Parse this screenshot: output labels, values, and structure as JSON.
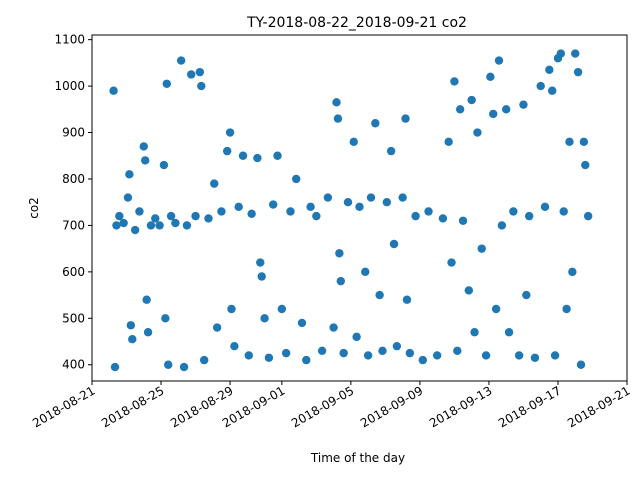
{
  "chart_data": {
    "type": "scatter",
    "title": "TY-2018-08-22_2018-09-21 co2",
    "xlabel": "Time of the day",
    "ylabel": "co2",
    "xlim": [
      "2018-08-21",
      "2018-09-21"
    ],
    "ylim": [
      365,
      1110
    ],
    "x_ticks": [
      "2018-08-21",
      "2018-08-25",
      "2018-08-29",
      "2018-09-01",
      "2018-09-05",
      "2018-09-09",
      "2018-09-13",
      "2018-09-17",
      "2018-09-21"
    ],
    "y_ticks": [
      400,
      500,
      600,
      700,
      800,
      900,
      1000,
      1100
    ],
    "grid": false,
    "marker_color": "#1f77b4",
    "series": [
      {
        "points": [
          [
            "2018-08-22 06:00",
            990
          ],
          [
            "2018-08-22 08:00",
            395
          ],
          [
            "2018-08-22 10:00",
            700
          ],
          [
            "2018-08-22 14:00",
            720
          ],
          [
            "2018-08-22 20:00",
            705
          ],
          [
            "2018-08-23 02:00",
            760
          ],
          [
            "2018-08-23 04:00",
            810
          ],
          [
            "2018-08-23 06:00",
            485
          ],
          [
            "2018-08-23 08:00",
            455
          ],
          [
            "2018-08-23 12:00",
            690
          ],
          [
            "2018-08-23 18:00",
            730
          ],
          [
            "2018-08-24 00:00",
            870
          ],
          [
            "2018-08-24 02:00",
            840
          ],
          [
            "2018-08-24 04:00",
            540
          ],
          [
            "2018-08-24 06:00",
            470
          ],
          [
            "2018-08-24 10:00",
            700
          ],
          [
            "2018-08-24 16:00",
            715
          ],
          [
            "2018-08-24 22:00",
            700
          ],
          [
            "2018-08-25 04:00",
            830
          ],
          [
            "2018-08-25 06:00",
            500
          ],
          [
            "2018-08-25 08:00",
            1005
          ],
          [
            "2018-08-25 10:00",
            400
          ],
          [
            "2018-08-25 14:00",
            720
          ],
          [
            "2018-08-25 20:00",
            705
          ],
          [
            "2018-08-26 04:00",
            1055
          ],
          [
            "2018-08-26 08:00",
            395
          ],
          [
            "2018-08-26 12:00",
            700
          ],
          [
            "2018-08-26 18:00",
            1025
          ],
          [
            "2018-08-27 00:00",
            720
          ],
          [
            "2018-08-27 06:00",
            1030
          ],
          [
            "2018-08-27 08:00",
            1000
          ],
          [
            "2018-08-27 12:00",
            410
          ],
          [
            "2018-08-27 18:00",
            715
          ],
          [
            "2018-08-28 02:00",
            790
          ],
          [
            "2018-08-28 06:00",
            480
          ],
          [
            "2018-08-28 12:00",
            730
          ],
          [
            "2018-08-28 20:00",
            860
          ],
          [
            "2018-08-29 00:00",
            900
          ],
          [
            "2018-08-29 02:00",
            520
          ],
          [
            "2018-08-29 06:00",
            440
          ],
          [
            "2018-08-29 12:00",
            740
          ],
          [
            "2018-08-29 18:00",
            850
          ],
          [
            "2018-08-30 02:00",
            420
          ],
          [
            "2018-08-30 06:00",
            725
          ],
          [
            "2018-08-30 14:00",
            845
          ],
          [
            "2018-08-30 18:00",
            620
          ],
          [
            "2018-08-30 20:00",
            590
          ],
          [
            "2018-08-31 00:00",
            500
          ],
          [
            "2018-08-31 06:00",
            415
          ],
          [
            "2018-08-31 12:00",
            745
          ],
          [
            "2018-08-31 18:00",
            850
          ],
          [
            "2018-09-01 00:00",
            520
          ],
          [
            "2018-09-01 06:00",
            425
          ],
          [
            "2018-09-01 12:00",
            730
          ],
          [
            "2018-09-01 20:00",
            800
          ],
          [
            "2018-09-02 04:00",
            490
          ],
          [
            "2018-09-02 10:00",
            410
          ],
          [
            "2018-09-02 16:00",
            740
          ],
          [
            "2018-09-03 00:00",
            720
          ],
          [
            "2018-09-03 08:00",
            430
          ],
          [
            "2018-09-03 16:00",
            760
          ],
          [
            "2018-09-04 00:00",
            480
          ],
          [
            "2018-09-04 04:00",
            965
          ],
          [
            "2018-09-04 06:00",
            930
          ],
          [
            "2018-09-04 08:00",
            640
          ],
          [
            "2018-09-04 10:00",
            580
          ],
          [
            "2018-09-04 14:00",
            425
          ],
          [
            "2018-09-04 20:00",
            750
          ],
          [
            "2018-09-05 04:00",
            880
          ],
          [
            "2018-09-05 08:00",
            460
          ],
          [
            "2018-09-05 12:00",
            740
          ],
          [
            "2018-09-05 20:00",
            600
          ],
          [
            "2018-09-06 00:00",
            420
          ],
          [
            "2018-09-06 04:00",
            760
          ],
          [
            "2018-09-06 10:00",
            920
          ],
          [
            "2018-09-06 16:00",
            550
          ],
          [
            "2018-09-06 20:00",
            430
          ],
          [
            "2018-09-07 02:00",
            750
          ],
          [
            "2018-09-07 08:00",
            860
          ],
          [
            "2018-09-07 12:00",
            660
          ],
          [
            "2018-09-07 16:00",
            440
          ],
          [
            "2018-09-08 00:00",
            760
          ],
          [
            "2018-09-08 04:00",
            930
          ],
          [
            "2018-09-08 06:00",
            540
          ],
          [
            "2018-09-08 10:00",
            425
          ],
          [
            "2018-09-08 18:00",
            720
          ],
          [
            "2018-09-09 04:00",
            410
          ],
          [
            "2018-09-09 12:00",
            730
          ],
          [
            "2018-09-10 00:00",
            420
          ],
          [
            "2018-09-10 08:00",
            715
          ],
          [
            "2018-09-10 16:00",
            880
          ],
          [
            "2018-09-10 20:00",
            620
          ],
          [
            "2018-09-11 00:00",
            1010
          ],
          [
            "2018-09-11 04:00",
            430
          ],
          [
            "2018-09-11 08:00",
            950
          ],
          [
            "2018-09-11 12:00",
            710
          ],
          [
            "2018-09-11 20:00",
            560
          ],
          [
            "2018-09-12 00:00",
            970
          ],
          [
            "2018-09-12 04:00",
            470
          ],
          [
            "2018-09-12 08:00",
            900
          ],
          [
            "2018-09-12 14:00",
            650
          ],
          [
            "2018-09-12 20:00",
            420
          ],
          [
            "2018-09-13 02:00",
            1020
          ],
          [
            "2018-09-13 06:00",
            940
          ],
          [
            "2018-09-13 10:00",
            520
          ],
          [
            "2018-09-13 14:00",
            1055
          ],
          [
            "2018-09-13 18:00",
            700
          ],
          [
            "2018-09-14 00:00",
            950
          ],
          [
            "2018-09-14 04:00",
            470
          ],
          [
            "2018-09-14 10:00",
            730
          ],
          [
            "2018-09-14 18:00",
            420
          ],
          [
            "2018-09-15 00:00",
            960
          ],
          [
            "2018-09-15 04:00",
            550
          ],
          [
            "2018-09-15 08:00",
            720
          ],
          [
            "2018-09-15 16:00",
            415
          ],
          [
            "2018-09-16 00:00",
            1000
          ],
          [
            "2018-09-16 06:00",
            740
          ],
          [
            "2018-09-16 12:00",
            1035
          ],
          [
            "2018-09-16 16:00",
            990
          ],
          [
            "2018-09-16 20:00",
            420
          ],
          [
            "2018-09-17 00:00",
            1060
          ],
          [
            "2018-09-17 04:00",
            1070
          ],
          [
            "2018-09-17 08:00",
            730
          ],
          [
            "2018-09-17 12:00",
            520
          ],
          [
            "2018-09-17 16:00",
            880
          ],
          [
            "2018-09-17 20:00",
            600
          ],
          [
            "2018-09-18 00:00",
            1070
          ],
          [
            "2018-09-18 04:00",
            1030
          ],
          [
            "2018-09-18 08:00",
            400
          ],
          [
            "2018-09-18 12:00",
            880
          ],
          [
            "2018-09-18 14:00",
            830
          ],
          [
            "2018-09-18 18:00",
            720
          ]
        ]
      }
    ]
  }
}
